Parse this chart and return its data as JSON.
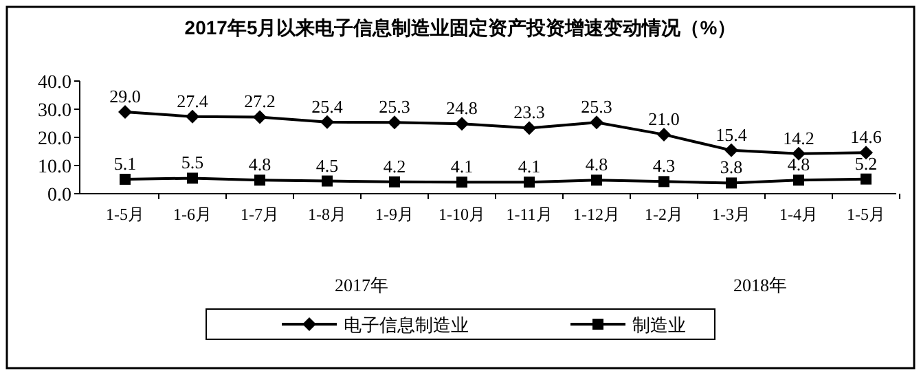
{
  "chart_data": {
    "type": "line",
    "title": "2017年5月以来电子信息制造业固定资产投资增速变动情况（%）",
    "categories": [
      "1-5月",
      "1-6月",
      "1-7月",
      "1-8月",
      "1-9月",
      "1-10月",
      "1-11月",
      "1-12月",
      "1-2月",
      "1-3月",
      "1-4月",
      "1-5月"
    ],
    "series": [
      {
        "name": "电子信息制造业",
        "color": "#000000",
        "marker": "diamond",
        "values": [
          29.0,
          27.4,
          27.2,
          25.4,
          25.3,
          24.8,
          23.3,
          25.3,
          21.0,
          15.4,
          14.2,
          14.6
        ],
        "value_labels": [
          "29.0",
          "27.4",
          "27.2",
          "25.4",
          "25.3",
          "24.8",
          "23.3",
          "25.3",
          "21.0",
          "15.4",
          "14.2",
          "14.6"
        ]
      },
      {
        "name": "制造业",
        "color": "#000000",
        "marker": "square",
        "values": [
          5.1,
          5.5,
          4.8,
          4.5,
          4.2,
          4.1,
          4.1,
          4.8,
          4.3,
          3.8,
          4.8,
          5.2
        ],
        "value_labels": [
          "5.1",
          "5.5",
          "4.8",
          "4.5",
          "4.2",
          "4.1",
          "4.1",
          "4.8",
          "4.3",
          "3.8",
          "4.8",
          "5.2"
        ]
      }
    ],
    "ylim": [
      0,
      40
    ],
    "yticks": [
      {
        "value": 0,
        "label": "0.0"
      },
      {
        "value": 10,
        "label": "10.0"
      },
      {
        "value": 20,
        "label": "20.0"
      },
      {
        "value": 30,
        "label": "30.0"
      },
      {
        "value": 40,
        "label": "40.0"
      }
    ],
    "grid": false,
    "legend": "bottom",
    "annotations": [
      "2017年",
      "2018年"
    ]
  }
}
